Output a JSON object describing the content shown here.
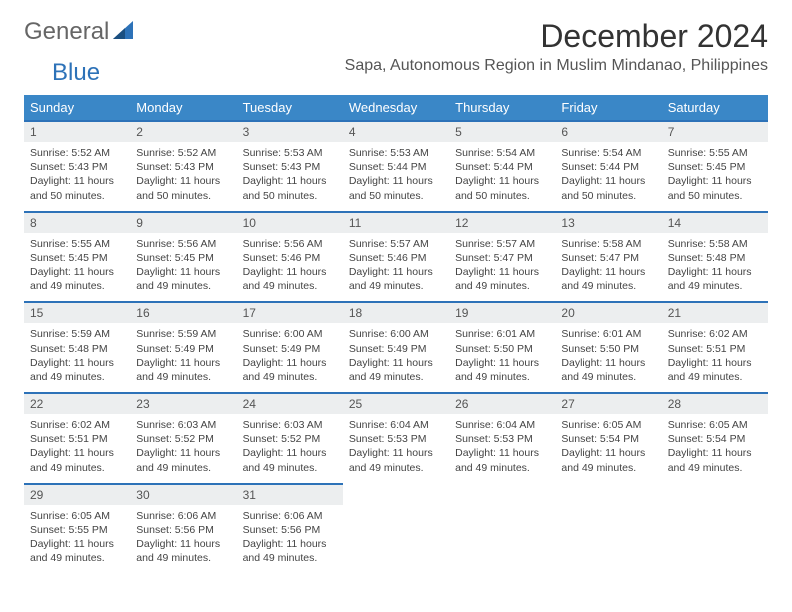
{
  "logo": {
    "text_gray": "General",
    "text_blue": "Blue",
    "gray_color": "#666666",
    "blue_color": "#2d72b8"
  },
  "header": {
    "month_title": "December 2024",
    "location": "Sapa, Autonomous Region in Muslim Mindanao, Philippines"
  },
  "colors": {
    "header_bg": "#3a87c7",
    "header_text": "#ffffff",
    "day_number_bg": "#eceeef",
    "day_border": "#2d72b8",
    "body_text": "#444444"
  },
  "weekdays": [
    "Sunday",
    "Monday",
    "Tuesday",
    "Wednesday",
    "Thursday",
    "Friday",
    "Saturday"
  ],
  "days": [
    {
      "num": "1",
      "sunrise": "5:52 AM",
      "sunset": "5:43 PM",
      "daylight": "11 hours and 50 minutes."
    },
    {
      "num": "2",
      "sunrise": "5:52 AM",
      "sunset": "5:43 PM",
      "daylight": "11 hours and 50 minutes."
    },
    {
      "num": "3",
      "sunrise": "5:53 AM",
      "sunset": "5:43 PM",
      "daylight": "11 hours and 50 minutes."
    },
    {
      "num": "4",
      "sunrise": "5:53 AM",
      "sunset": "5:44 PM",
      "daylight": "11 hours and 50 minutes."
    },
    {
      "num": "5",
      "sunrise": "5:54 AM",
      "sunset": "5:44 PM",
      "daylight": "11 hours and 50 minutes."
    },
    {
      "num": "6",
      "sunrise": "5:54 AM",
      "sunset": "5:44 PM",
      "daylight": "11 hours and 50 minutes."
    },
    {
      "num": "7",
      "sunrise": "5:55 AM",
      "sunset": "5:45 PM",
      "daylight": "11 hours and 50 minutes."
    },
    {
      "num": "8",
      "sunrise": "5:55 AM",
      "sunset": "5:45 PM",
      "daylight": "11 hours and 49 minutes."
    },
    {
      "num": "9",
      "sunrise": "5:56 AM",
      "sunset": "5:45 PM",
      "daylight": "11 hours and 49 minutes."
    },
    {
      "num": "10",
      "sunrise": "5:56 AM",
      "sunset": "5:46 PM",
      "daylight": "11 hours and 49 minutes."
    },
    {
      "num": "11",
      "sunrise": "5:57 AM",
      "sunset": "5:46 PM",
      "daylight": "11 hours and 49 minutes."
    },
    {
      "num": "12",
      "sunrise": "5:57 AM",
      "sunset": "5:47 PM",
      "daylight": "11 hours and 49 minutes."
    },
    {
      "num": "13",
      "sunrise": "5:58 AM",
      "sunset": "5:47 PM",
      "daylight": "11 hours and 49 minutes."
    },
    {
      "num": "14",
      "sunrise": "5:58 AM",
      "sunset": "5:48 PM",
      "daylight": "11 hours and 49 minutes."
    },
    {
      "num": "15",
      "sunrise": "5:59 AM",
      "sunset": "5:48 PM",
      "daylight": "11 hours and 49 minutes."
    },
    {
      "num": "16",
      "sunrise": "5:59 AM",
      "sunset": "5:49 PM",
      "daylight": "11 hours and 49 minutes."
    },
    {
      "num": "17",
      "sunrise": "6:00 AM",
      "sunset": "5:49 PM",
      "daylight": "11 hours and 49 minutes."
    },
    {
      "num": "18",
      "sunrise": "6:00 AM",
      "sunset": "5:49 PM",
      "daylight": "11 hours and 49 minutes."
    },
    {
      "num": "19",
      "sunrise": "6:01 AM",
      "sunset": "5:50 PM",
      "daylight": "11 hours and 49 minutes."
    },
    {
      "num": "20",
      "sunrise": "6:01 AM",
      "sunset": "5:50 PM",
      "daylight": "11 hours and 49 minutes."
    },
    {
      "num": "21",
      "sunrise": "6:02 AM",
      "sunset": "5:51 PM",
      "daylight": "11 hours and 49 minutes."
    },
    {
      "num": "22",
      "sunrise": "6:02 AM",
      "sunset": "5:51 PM",
      "daylight": "11 hours and 49 minutes."
    },
    {
      "num": "23",
      "sunrise": "6:03 AM",
      "sunset": "5:52 PM",
      "daylight": "11 hours and 49 minutes."
    },
    {
      "num": "24",
      "sunrise": "6:03 AM",
      "sunset": "5:52 PM",
      "daylight": "11 hours and 49 minutes."
    },
    {
      "num": "25",
      "sunrise": "6:04 AM",
      "sunset": "5:53 PM",
      "daylight": "11 hours and 49 minutes."
    },
    {
      "num": "26",
      "sunrise": "6:04 AM",
      "sunset": "5:53 PM",
      "daylight": "11 hours and 49 minutes."
    },
    {
      "num": "27",
      "sunrise": "6:05 AM",
      "sunset": "5:54 PM",
      "daylight": "11 hours and 49 minutes."
    },
    {
      "num": "28",
      "sunrise": "6:05 AM",
      "sunset": "5:54 PM",
      "daylight": "11 hours and 49 minutes."
    },
    {
      "num": "29",
      "sunrise": "6:05 AM",
      "sunset": "5:55 PM",
      "daylight": "11 hours and 49 minutes."
    },
    {
      "num": "30",
      "sunrise": "6:06 AM",
      "sunset": "5:56 PM",
      "daylight": "11 hours and 49 minutes."
    },
    {
      "num": "31",
      "sunrise": "6:06 AM",
      "sunset": "5:56 PM",
      "daylight": "11 hours and 49 minutes."
    }
  ],
  "labels": {
    "sunrise": "Sunrise: ",
    "sunset": "Sunset: ",
    "daylight": "Daylight: "
  },
  "layout": {
    "start_offset": 0,
    "weeks": 5,
    "columns": 7
  }
}
